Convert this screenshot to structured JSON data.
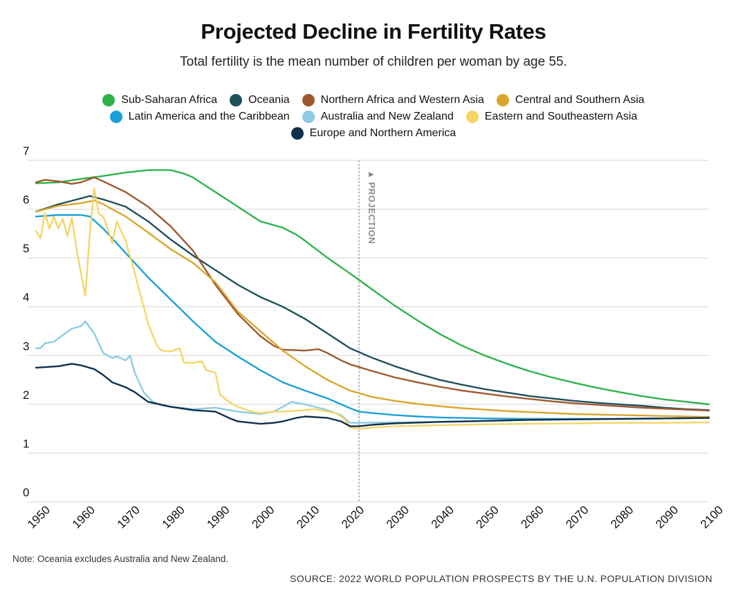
{
  "chart_data": {
    "type": "line",
    "title": "Projected Decline in Fertility Rates",
    "subtitle": "Total fertility is the mean number of children per woman by age 55.",
    "xlabel": "",
    "ylabel": "",
    "xlim": [
      1950,
      2100
    ],
    "ylim": [
      0,
      7
    ],
    "x_ticks": [
      1950,
      1960,
      1970,
      1980,
      1990,
      2000,
      2010,
      2020,
      2030,
      2040,
      2050,
      2060,
      2070,
      2080,
      2090,
      2100
    ],
    "y_ticks": [
      0,
      1,
      2,
      3,
      4,
      5,
      6,
      7
    ],
    "grid": true,
    "legend_position": "top-center",
    "projection_start": 2022,
    "projection_label": "▲ PROJECTION",
    "series": [
      {
        "name": "Sub-Saharan Africa",
        "color": "#2db24a",
        "points": [
          [
            1950,
            6.53
          ],
          [
            1955,
            6.55
          ],
          [
            1960,
            6.62
          ],
          [
            1965,
            6.68
          ],
          [
            1970,
            6.75
          ],
          [
            1975,
            6.8
          ],
          [
            1980,
            6.8
          ],
          [
            1983,
            6.73
          ],
          [
            1985,
            6.65
          ],
          [
            1990,
            6.35
          ],
          [
            1995,
            6.05
          ],
          [
            2000,
            5.75
          ],
          [
            2005,
            5.62
          ],
          [
            2008,
            5.48
          ],
          [
            2010,
            5.35
          ],
          [
            2015,
            5.0
          ],
          [
            2020,
            4.68
          ],
          [
            2022,
            4.55
          ],
          [
            2025,
            4.35
          ],
          [
            2030,
            4.02
          ],
          [
            2035,
            3.72
          ],
          [
            2040,
            3.44
          ],
          [
            2045,
            3.2
          ],
          [
            2050,
            3.0
          ],
          [
            2055,
            2.83
          ],
          [
            2060,
            2.68
          ],
          [
            2065,
            2.55
          ],
          [
            2070,
            2.44
          ],
          [
            2075,
            2.34
          ],
          [
            2080,
            2.25
          ],
          [
            2085,
            2.17
          ],
          [
            2090,
            2.1
          ],
          [
            2095,
            2.05
          ],
          [
            2100,
            2.0
          ]
        ]
      },
      {
        "name": "Oceania",
        "color": "#1f4e5c",
        "points": [
          [
            1950,
            5.95
          ],
          [
            1955,
            6.1
          ],
          [
            1960,
            6.22
          ],
          [
            1962,
            6.27
          ],
          [
            1965,
            6.2
          ],
          [
            1970,
            6.05
          ],
          [
            1975,
            5.75
          ],
          [
            1980,
            5.38
          ],
          [
            1985,
            5.05
          ],
          [
            1990,
            4.75
          ],
          [
            1995,
            4.45
          ],
          [
            2000,
            4.2
          ],
          [
            2005,
            4.0
          ],
          [
            2010,
            3.75
          ],
          [
            2015,
            3.45
          ],
          [
            2020,
            3.15
          ],
          [
            2025,
            2.95
          ],
          [
            2030,
            2.78
          ],
          [
            2035,
            2.63
          ],
          [
            2040,
            2.5
          ],
          [
            2045,
            2.4
          ],
          [
            2050,
            2.31
          ],
          [
            2055,
            2.24
          ],
          [
            2060,
            2.17
          ],
          [
            2065,
            2.12
          ],
          [
            2070,
            2.07
          ],
          [
            2075,
            2.03
          ],
          [
            2080,
            2.0
          ],
          [
            2085,
            1.97
          ],
          [
            2090,
            1.93
          ],
          [
            2095,
            1.9
          ],
          [
            2100,
            1.88
          ]
        ]
      },
      {
        "name": "Northern Africa and Western Asia",
        "color": "#a0572e",
        "points": [
          [
            1950,
            6.55
          ],
          [
            1952,
            6.6
          ],
          [
            1955,
            6.57
          ],
          [
            1958,
            6.52
          ],
          [
            1960,
            6.55
          ],
          [
            1963,
            6.65
          ],
          [
            1965,
            6.57
          ],
          [
            1970,
            6.35
          ],
          [
            1975,
            6.05
          ],
          [
            1980,
            5.65
          ],
          [
            1985,
            5.15
          ],
          [
            1990,
            4.45
          ],
          [
            1995,
            3.85
          ],
          [
            2000,
            3.4
          ],
          [
            2003,
            3.2
          ],
          [
            2005,
            3.12
          ],
          [
            2010,
            3.1
          ],
          [
            2013,
            3.13
          ],
          [
            2015,
            3.05
          ],
          [
            2018,
            2.9
          ],
          [
            2020,
            2.82
          ],
          [
            2025,
            2.68
          ],
          [
            2030,
            2.55
          ],
          [
            2035,
            2.45
          ],
          [
            2040,
            2.36
          ],
          [
            2045,
            2.28
          ],
          [
            2050,
            2.22
          ],
          [
            2055,
            2.16
          ],
          [
            2060,
            2.11
          ],
          [
            2065,
            2.06
          ],
          [
            2070,
            2.02
          ],
          [
            2075,
            1.99
          ],
          [
            2080,
            1.96
          ],
          [
            2085,
            1.93
          ],
          [
            2090,
            1.91
          ],
          [
            2095,
            1.89
          ],
          [
            2100,
            1.87
          ]
        ]
      },
      {
        "name": "Central and Southern Asia",
        "color": "#d9a52d",
        "points": [
          [
            1950,
            5.95
          ],
          [
            1955,
            6.07
          ],
          [
            1960,
            6.12
          ],
          [
            1963,
            6.18
          ],
          [
            1965,
            6.1
          ],
          [
            1970,
            5.85
          ],
          [
            1975,
            5.52
          ],
          [
            1980,
            5.18
          ],
          [
            1985,
            4.9
          ],
          [
            1990,
            4.5
          ],
          [
            1995,
            3.9
          ],
          [
            2000,
            3.5
          ],
          [
            2005,
            3.1
          ],
          [
            2010,
            2.78
          ],
          [
            2015,
            2.5
          ],
          [
            2020,
            2.28
          ],
          [
            2025,
            2.15
          ],
          [
            2030,
            2.07
          ],
          [
            2035,
            2.01
          ],
          [
            2040,
            1.96
          ],
          [
            2045,
            1.92
          ],
          [
            2050,
            1.89
          ],
          [
            2055,
            1.86
          ],
          [
            2060,
            1.84
          ],
          [
            2065,
            1.82
          ],
          [
            2070,
            1.8
          ],
          [
            2075,
            1.79
          ],
          [
            2080,
            1.78
          ],
          [
            2085,
            1.77
          ],
          [
            2090,
            1.76
          ],
          [
            2095,
            1.75
          ],
          [
            2100,
            1.74
          ]
        ]
      },
      {
        "name": "Latin America and the Caribbean",
        "color": "#1aa0d8",
        "points": [
          [
            1950,
            5.85
          ],
          [
            1955,
            5.88
          ],
          [
            1960,
            5.88
          ],
          [
            1962,
            5.85
          ],
          [
            1965,
            5.6
          ],
          [
            1970,
            5.1
          ],
          [
            1975,
            4.6
          ],
          [
            1980,
            4.15
          ],
          [
            1985,
            3.7
          ],
          [
            1990,
            3.28
          ],
          [
            1995,
            2.98
          ],
          [
            2000,
            2.7
          ],
          [
            2005,
            2.45
          ],
          [
            2010,
            2.28
          ],
          [
            2015,
            2.12
          ],
          [
            2020,
            1.92
          ],
          [
            2022,
            1.85
          ],
          [
            2025,
            1.82
          ],
          [
            2030,
            1.78
          ],
          [
            2035,
            1.75
          ],
          [
            2040,
            1.73
          ],
          [
            2045,
            1.72
          ],
          [
            2050,
            1.71
          ],
          [
            2060,
            1.7
          ],
          [
            2070,
            1.7
          ],
          [
            2080,
            1.7
          ],
          [
            2090,
            1.71
          ],
          [
            2100,
            1.72
          ]
        ]
      },
      {
        "name": "Australia and New Zealand",
        "color": "#8ccbe2",
        "points": [
          [
            1950,
            3.15
          ],
          [
            1951,
            3.15
          ],
          [
            1952,
            3.25
          ],
          [
            1954,
            3.28
          ],
          [
            1956,
            3.42
          ],
          [
            1958,
            3.55
          ],
          [
            1960,
            3.6
          ],
          [
            1961,
            3.7
          ],
          [
            1963,
            3.45
          ],
          [
            1965,
            3.05
          ],
          [
            1967,
            2.95
          ],
          [
            1968,
            2.98
          ],
          [
            1970,
            2.9
          ],
          [
            1971,
            3.0
          ],
          [
            1972,
            2.65
          ],
          [
            1974,
            2.25
          ],
          [
            1976,
            2.05
          ],
          [
            1978,
            1.98
          ],
          [
            1980,
            1.95
          ],
          [
            1983,
            1.92
          ],
          [
            1985,
            1.9
          ],
          [
            1990,
            1.93
          ],
          [
            1995,
            1.85
          ],
          [
            2000,
            1.8
          ],
          [
            2003,
            1.85
          ],
          [
            2005,
            1.95
          ],
          [
            2007,
            2.05
          ],
          [
            2008,
            2.03
          ],
          [
            2010,
            2.0
          ],
          [
            2012,
            1.95
          ],
          [
            2015,
            1.88
          ],
          [
            2018,
            1.78
          ],
          [
            2020,
            1.62
          ],
          [
            2022,
            1.62
          ],
          [
            2030,
            1.63
          ],
          [
            2040,
            1.64
          ],
          [
            2050,
            1.66
          ],
          [
            2060,
            1.68
          ],
          [
            2070,
            1.69
          ],
          [
            2080,
            1.7
          ],
          [
            2090,
            1.71
          ],
          [
            2100,
            1.72
          ]
        ]
      },
      {
        "name": "Eastern and Southeastern Asia",
        "color": "#f5d566",
        "points": [
          [
            1950,
            5.55
          ],
          [
            1951,
            5.4
          ],
          [
            1952,
            5.92
          ],
          [
            1953,
            5.6
          ],
          [
            1954,
            5.85
          ],
          [
            1955,
            5.6
          ],
          [
            1956,
            5.8
          ],
          [
            1957,
            5.45
          ],
          [
            1958,
            5.82
          ],
          [
            1959,
            5.2
          ],
          [
            1960,
            4.7
          ],
          [
            1961,
            4.22
          ],
          [
            1962,
            5.5
          ],
          [
            1963,
            6.42
          ],
          [
            1964,
            5.9
          ],
          [
            1965,
            5.85
          ],
          [
            1966,
            5.6
          ],
          [
            1967,
            5.3
          ],
          [
            1968,
            5.75
          ],
          [
            1970,
            5.35
          ],
          [
            1972,
            4.7
          ],
          [
            1974,
            4.0
          ],
          [
            1975,
            3.65
          ],
          [
            1977,
            3.2
          ],
          [
            1978,
            3.1
          ],
          [
            1980,
            3.08
          ],
          [
            1982,
            3.15
          ],
          [
            1983,
            2.85
          ],
          [
            1985,
            2.85
          ],
          [
            1987,
            2.88
          ],
          [
            1988,
            2.7
          ],
          [
            1990,
            2.65
          ],
          [
            1991,
            2.2
          ],
          [
            1993,
            2.05
          ],
          [
            1995,
            1.95
          ],
          [
            1998,
            1.85
          ],
          [
            2000,
            1.82
          ],
          [
            2003,
            1.85
          ],
          [
            2005,
            1.85
          ],
          [
            2010,
            1.88
          ],
          [
            2012,
            1.9
          ],
          [
            2015,
            1.85
          ],
          [
            2017,
            1.82
          ],
          [
            2019,
            1.68
          ],
          [
            2020,
            1.52
          ],
          [
            2022,
            1.5
          ],
          [
            2025,
            1.52
          ],
          [
            2030,
            1.55
          ],
          [
            2040,
            1.57
          ],
          [
            2050,
            1.59
          ],
          [
            2060,
            1.6
          ],
          [
            2070,
            1.61
          ],
          [
            2080,
            1.62
          ],
          [
            2090,
            1.62
          ],
          [
            2100,
            1.63
          ]
        ]
      },
      {
        "name": "Europe and Northern America",
        "color": "#0e2f4a",
        "points": [
          [
            1950,
            2.75
          ],
          [
            1955,
            2.78
          ],
          [
            1958,
            2.83
          ],
          [
            1960,
            2.8
          ],
          [
            1963,
            2.72
          ],
          [
            1965,
            2.6
          ],
          [
            1967,
            2.45
          ],
          [
            1970,
            2.35
          ],
          [
            1972,
            2.25
          ],
          [
            1975,
            2.05
          ],
          [
            1980,
            1.95
          ],
          [
            1985,
            1.88
          ],
          [
            1990,
            1.85
          ],
          [
            1993,
            1.72
          ],
          [
            1995,
            1.65
          ],
          [
            2000,
            1.6
          ],
          [
            2003,
            1.62
          ],
          [
            2005,
            1.65
          ],
          [
            2008,
            1.72
          ],
          [
            2010,
            1.75
          ],
          [
            2015,
            1.72
          ],
          [
            2018,
            1.65
          ],
          [
            2020,
            1.55
          ],
          [
            2022,
            1.55
          ],
          [
            2025,
            1.58
          ],
          [
            2030,
            1.61
          ],
          [
            2040,
            1.64
          ],
          [
            2050,
            1.66
          ],
          [
            2060,
            1.68
          ],
          [
            2070,
            1.69
          ],
          [
            2080,
            1.7
          ],
          [
            2090,
            1.71
          ],
          [
            2100,
            1.72
          ]
        ]
      }
    ],
    "legend_rows": [
      [
        0,
        1,
        2,
        3
      ],
      [
        4,
        5,
        6
      ],
      [
        7
      ]
    ]
  },
  "note": "Note: Oceania excludes Australia and New Zealand.",
  "source": "SOURCE: 2022 WORLD POPULATION PROSPECTS BY THE U.N. POPULATION DIVISION"
}
